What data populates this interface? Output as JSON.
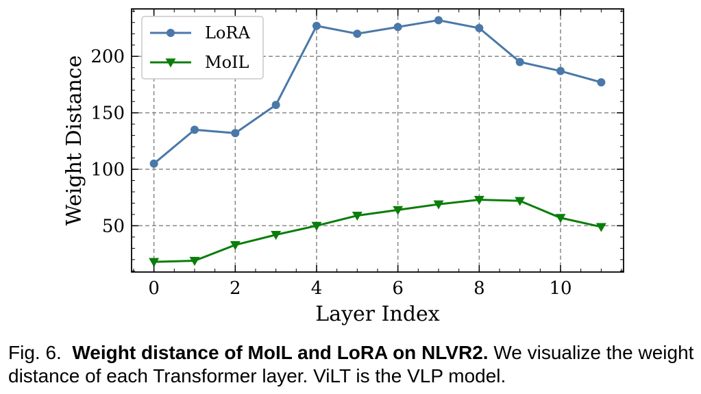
{
  "chart_data": {
    "type": "line",
    "title": "",
    "xlabel": "Layer Index",
    "ylabel": "Weight Distance",
    "x": [
      0,
      1,
      2,
      3,
      4,
      5,
      6,
      7,
      8,
      9,
      10,
      11
    ],
    "xlim": [
      -0.55,
      11.55
    ],
    "ylim": [
      9,
      242
    ],
    "xticks": [
      0,
      2,
      4,
      6,
      8,
      10
    ],
    "yticks": [
      50,
      100,
      150,
      200
    ],
    "grid": true,
    "legend_position": "top-left",
    "series": [
      {
        "name": "LoRA",
        "marker": "circle",
        "color": "#4a78a8",
        "values": [
          105,
          135,
          132,
          157,
          227,
          220,
          226,
          232,
          225,
          195,
          187,
          177
        ]
      },
      {
        "name": "MoIL",
        "marker": "triangle-down",
        "color": "#0a7d0a",
        "values": [
          18,
          19,
          33,
          42,
          50,
          59,
          64,
          69,
          73,
          72,
          57,
          49
        ]
      }
    ]
  },
  "caption": {
    "prefix": "Fig. 6.",
    "bold": "Weight distance of MoIL and LoRA on NLVR2.",
    "rest": "We visualize the weight distance of each Transformer layer. ViLT is the VLP model."
  }
}
